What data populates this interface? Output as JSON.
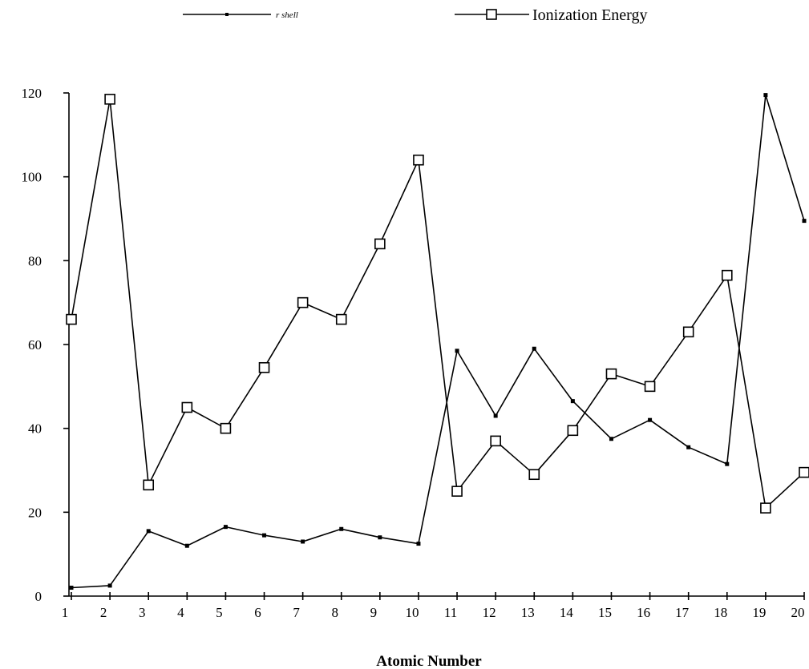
{
  "chart_data": {
    "type": "line",
    "title": "",
    "xlabel": "Atomic Number",
    "ylabel": "",
    "x": [
      1,
      2,
      3,
      4,
      5,
      6,
      7,
      8,
      9,
      10,
      11,
      12,
      13,
      14,
      15,
      16,
      17,
      18,
      19,
      20
    ],
    "xlim": [
      1,
      20
    ],
    "ylim": [
      0,
      120
    ],
    "yticks": [
      0,
      20,
      40,
      60,
      80,
      100,
      120
    ],
    "grid": false,
    "legend_position": "top",
    "series": [
      {
        "name": "r shell",
        "marker": "small-filled-square",
        "color": "#000000",
        "values": [
          2,
          2.5,
          15.5,
          12,
          16.5,
          14.5,
          13,
          16,
          14,
          12.5,
          58.5,
          43,
          59,
          46.5,
          37.5,
          42,
          35.5,
          31.5,
          119.5,
          89.5
        ]
      },
      {
        "name": "Ionization Energy",
        "marker": "open-square",
        "color": "#000000",
        "values": [
          66,
          118.5,
          26.5,
          45,
          40,
          54.5,
          70,
          66,
          84,
          104,
          25,
          37,
          29,
          39.5,
          53,
          50,
          63,
          76.5,
          21,
          29.5
        ]
      }
    ]
  }
}
